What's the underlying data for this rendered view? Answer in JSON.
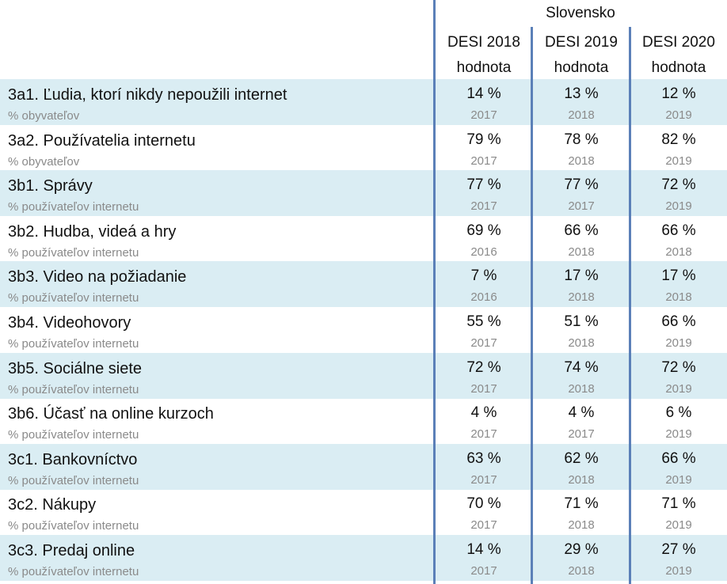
{
  "header": {
    "country": "Slovensko",
    "columns": [
      {
        "title": "DESI 2018",
        "sub": "hodnota"
      },
      {
        "title": "DESI 2019",
        "sub": "hodnota"
      },
      {
        "title": "DESI 2020",
        "sub": "hodnota"
      }
    ]
  },
  "rows": [
    {
      "label": "3a1. Ľudia, ktorí nikdy nepoužili internet",
      "unit": "% obyvateľov",
      "cells": [
        {
          "value": "14 %",
          "year": "2017"
        },
        {
          "value": "13 %",
          "year": "2018"
        },
        {
          "value": "12 %",
          "year": "2019"
        }
      ]
    },
    {
      "label": "3a2. Používatelia internetu",
      "unit": "% obyvateľov",
      "cells": [
        {
          "value": "79 %",
          "year": "2017"
        },
        {
          "value": "78 %",
          "year": "2018"
        },
        {
          "value": "82 %",
          "year": "2019"
        }
      ]
    },
    {
      "label": "3b1. Správy",
      "unit": "% používateľov internetu",
      "cells": [
        {
          "value": "77 %",
          "year": "2017"
        },
        {
          "value": "77 %",
          "year": "2017"
        },
        {
          "value": "72 %",
          "year": "2019"
        }
      ]
    },
    {
      "label": "3b2. Hudba, videá a hry",
      "unit": "% používateľov internetu",
      "cells": [
        {
          "value": "69 %",
          "year": "2016"
        },
        {
          "value": "66 %",
          "year": "2018"
        },
        {
          "value": "66 %",
          "year": "2018"
        }
      ]
    },
    {
      "label": "3b3. Video na požiadanie",
      "unit": "% používateľov internetu",
      "cells": [
        {
          "value": "7 %",
          "year": "2016"
        },
        {
          "value": "17 %",
          "year": "2018"
        },
        {
          "value": "17 %",
          "year": "2018"
        }
      ]
    },
    {
      "label": "3b4. Videohovory",
      "unit": "% používateľov internetu",
      "cells": [
        {
          "value": "55 %",
          "year": "2017"
        },
        {
          "value": "51 %",
          "year": "2018"
        },
        {
          "value": "66 %",
          "year": "2019"
        }
      ]
    },
    {
      "label": "3b5. Sociálne siete",
      "unit": "% používateľov internetu",
      "cells": [
        {
          "value": "72 %",
          "year": "2017"
        },
        {
          "value": "74 %",
          "year": "2018"
        },
        {
          "value": "72 %",
          "year": "2019"
        }
      ]
    },
    {
      "label": "3b6. Účasť na online kurzoch",
      "unit": "% používateľov internetu",
      "cells": [
        {
          "value": "4 %",
          "year": "2017"
        },
        {
          "value": "4 %",
          "year": "2017"
        },
        {
          "value": "6 %",
          "year": "2019"
        }
      ]
    },
    {
      "label": "3c1. Bankovníctvo",
      "unit": "% používateľov internetu",
      "cells": [
        {
          "value": "63 %",
          "year": "2017"
        },
        {
          "value": "62 %",
          "year": "2018"
        },
        {
          "value": "66 %",
          "year": "2019"
        }
      ]
    },
    {
      "label": "3c2. Nákupy",
      "unit": "% používateľov internetu",
      "cells": [
        {
          "value": "70 %",
          "year": "2017"
        },
        {
          "value": "71 %",
          "year": "2018"
        },
        {
          "value": "71 %",
          "year": "2019"
        }
      ]
    },
    {
      "label": "3c3. Predaj online",
      "unit": "% používateľov internetu",
      "cells": [
        {
          "value": "14 %",
          "year": "2017"
        },
        {
          "value": "29 %",
          "year": "2018"
        },
        {
          "value": "27 %",
          "year": "2019"
        }
      ]
    }
  ],
  "colors": {
    "shade": "#daedf3",
    "divider": "#5b80b8"
  }
}
